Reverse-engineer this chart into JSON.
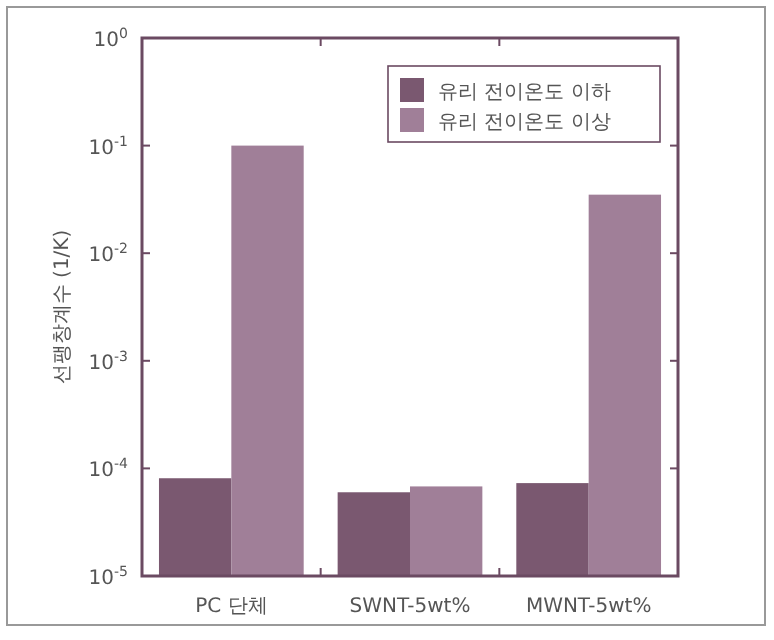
{
  "chart_data": {
    "type": "bar",
    "ylabel": "선팽창계수 (1/K)",
    "categories": [
      "PC 단체",
      "SWNT-5wt%",
      "MWNT-5wt%"
    ],
    "log": "y",
    "ylim": [
      1e-05,
      1
    ],
    "yticks": [
      {
        "value": 1e-05,
        "label": "10$^{-5}$"
      },
      {
        "value": 0.0001,
        "label": "10$^{-4}$"
      },
      {
        "value": 0.001,
        "label": "10$^{-3}$"
      },
      {
        "value": 0.01,
        "label": "10$^{-2}$"
      },
      {
        "value": 0.1,
        "label": "10$^{-1}$"
      },
      {
        "value": 1,
        "label": "10$^{0}$"
      }
    ],
    "legend": "top right",
    "grid": false,
    "series": [
      {
        "name": "유리 전이온도 이하",
        "color": "#7a5870",
        "values": [
          8.1e-05,
          6e-05,
          7.3e-05
        ]
      },
      {
        "name": "유리 전이온도 이상",
        "color": "#a07f98",
        "values": [
          0.1,
          6.8e-05,
          0.035
        ]
      }
    ]
  }
}
